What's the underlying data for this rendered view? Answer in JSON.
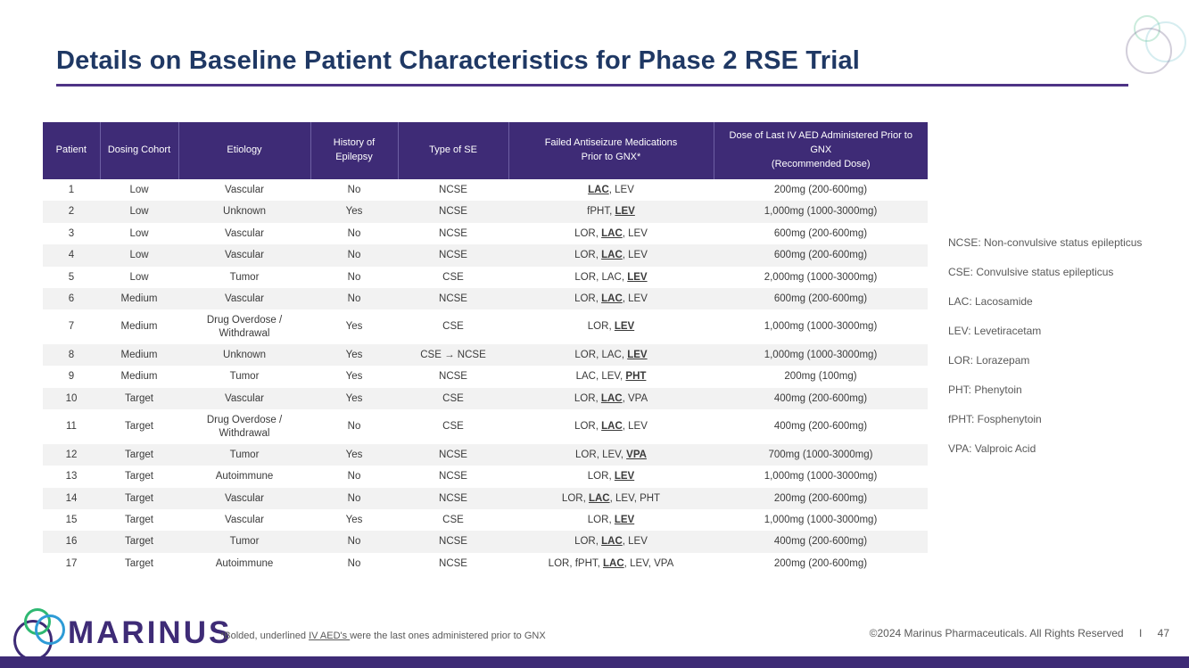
{
  "slide": {
    "title": "Details on Baseline Patient Characteristics for Phase 2 RSE Trial"
  },
  "colors": {
    "title_navy": "#1F3864",
    "rule_purple": "#4E3386",
    "table_header_purple": "#3E2B76",
    "row_stripe_gray": "#F2F2F2",
    "legend_gray": "#595959",
    "logo_green": "#2EB872",
    "logo_blue": "#2E9BD6",
    "bottom_bar_purple": "#3E2B76"
  },
  "table": {
    "headers": [
      {
        "lines": [
          "Patient"
        ]
      },
      {
        "lines": [
          "Dosing Cohort"
        ]
      },
      {
        "lines": [
          "Etiology"
        ]
      },
      {
        "lines": [
          "History of",
          "Epilepsy"
        ]
      },
      {
        "lines": [
          "Type of SE"
        ]
      },
      {
        "lines": [
          "Failed Antiseizure Medications",
          "Prior to GNX*"
        ]
      },
      {
        "lines": [
          "Dose of Last IV AED Administered Prior to",
          "GNX",
          "(Recommended Dose)"
        ]
      }
    ],
    "rows": [
      {
        "patient": "1",
        "cohort": "Low",
        "etiology": "Vascular",
        "history": "No",
        "type_se": "NCSE",
        "meds": [
          {
            "t": "LAC",
            "u": true
          },
          {
            "t": "LEV",
            "u": false
          }
        ],
        "dose": "200mg (200-600mg)"
      },
      {
        "patient": "2",
        "cohort": "Low",
        "etiology": "Unknown",
        "history": "Yes",
        "type_se": "NCSE",
        "meds": [
          {
            "t": "fPHT",
            "u": false
          },
          {
            "t": "LEV",
            "u": true
          }
        ],
        "dose": "1,000mg (1000-3000mg)"
      },
      {
        "patient": "3",
        "cohort": "Low",
        "etiology": "Vascular",
        "history": "No",
        "type_se": "NCSE",
        "meds": [
          {
            "t": "LOR",
            "u": false
          },
          {
            "t": "LAC",
            "u": true
          },
          {
            "t": "LEV",
            "u": false
          }
        ],
        "dose": "600mg (200-600mg)"
      },
      {
        "patient": "4",
        "cohort": "Low",
        "etiology": "Vascular",
        "history": "No",
        "type_se": "NCSE",
        "meds": [
          {
            "t": "LOR",
            "u": false
          },
          {
            "t": "LAC",
            "u": true
          },
          {
            "t": "LEV",
            "u": false
          }
        ],
        "dose": "600mg (200-600mg)"
      },
      {
        "patient": "5",
        "cohort": "Low",
        "etiology": "Tumor",
        "history": "No",
        "type_se": "CSE",
        "meds": [
          {
            "t": "LOR",
            "u": false
          },
          {
            "t": "LAC",
            "u": false
          },
          {
            "t": "LEV",
            "u": true
          }
        ],
        "dose": "2,000mg (1000-3000mg)"
      },
      {
        "patient": "6",
        "cohort": "Medium",
        "etiology": "Vascular",
        "history": "No",
        "type_se": "NCSE",
        "meds": [
          {
            "t": "LOR",
            "u": false
          },
          {
            "t": "LAC",
            "u": true
          },
          {
            "t": "LEV",
            "u": false
          }
        ],
        "dose": "600mg (200-600mg)"
      },
      {
        "patient": "7",
        "cohort": "Medium",
        "etiology": "Drug Overdose / Withdrawal",
        "history": "Yes",
        "type_se": "CSE",
        "meds": [
          {
            "t": "LOR",
            "u": false
          },
          {
            "t": "LEV",
            "u": true
          }
        ],
        "dose": "1,000mg (1000-3000mg)"
      },
      {
        "patient": "8",
        "cohort": "Medium",
        "etiology": "Unknown",
        "history": "Yes",
        "type_se": "CSE → NCSE",
        "meds": [
          {
            "t": "LOR",
            "u": false
          },
          {
            "t": "LAC",
            "u": false
          },
          {
            "t": "LEV",
            "u": true
          }
        ],
        "dose": "1,000mg (1000-3000mg)"
      },
      {
        "patient": "9",
        "cohort": "Medium",
        "etiology": "Tumor",
        "history": "Yes",
        "type_se": "NCSE",
        "meds": [
          {
            "t": "LAC",
            "u": false
          },
          {
            "t": "LEV",
            "u": false
          },
          {
            "t": "PHT",
            "u": true
          }
        ],
        "dose": "200mg (100mg)"
      },
      {
        "patient": "10",
        "cohort": "Target",
        "etiology": "Vascular",
        "history": "Yes",
        "type_se": "CSE",
        "meds": [
          {
            "t": "LOR",
            "u": false
          },
          {
            "t": "LAC",
            "u": true
          },
          {
            "t": "VPA",
            "u": false
          }
        ],
        "dose": "400mg (200-600mg)"
      },
      {
        "patient": "11",
        "cohort": "Target",
        "etiology": "Drug Overdose / Withdrawal",
        "history": "No",
        "type_se": "CSE",
        "meds": [
          {
            "t": "LOR",
            "u": false
          },
          {
            "t": "LAC",
            "u": true
          },
          {
            "t": "LEV",
            "u": false
          }
        ],
        "dose": "400mg (200-600mg)"
      },
      {
        "patient": "12",
        "cohort": "Target",
        "etiology": "Tumor",
        "history": "Yes",
        "type_se": "NCSE",
        "meds": [
          {
            "t": "LOR",
            "u": false
          },
          {
            "t": "LEV",
            "u": false
          },
          {
            "t": "VPA",
            "u": true
          }
        ],
        "dose": "700mg (1000-3000mg)"
      },
      {
        "patient": "13",
        "cohort": "Target",
        "etiology": "Autoimmune",
        "history": "No",
        "type_se": "NCSE",
        "meds": [
          {
            "t": "LOR",
            "u": false
          },
          {
            "t": "LEV",
            "u": true
          }
        ],
        "dose": "1,000mg (1000-3000mg)"
      },
      {
        "patient": "14",
        "cohort": "Target",
        "etiology": "Vascular",
        "history": "No",
        "type_se": "NCSE",
        "meds": [
          {
            "t": "LOR",
            "u": false
          },
          {
            "t": "LAC",
            "u": true
          },
          {
            "t": "LEV",
            "u": false
          },
          {
            "t": "PHT",
            "u": false
          }
        ],
        "dose": "200mg (200-600mg)"
      },
      {
        "patient": "15",
        "cohort": "Target",
        "etiology": "Vascular",
        "history": "Yes",
        "type_se": "CSE",
        "meds": [
          {
            "t": "LOR",
            "u": false
          },
          {
            "t": "LEV",
            "u": true
          }
        ],
        "dose": "1,000mg (1000-3000mg)"
      },
      {
        "patient": "16",
        "cohort": "Target",
        "etiology": "Tumor",
        "history": "No",
        "type_se": "NCSE",
        "meds": [
          {
            "t": "LOR",
            "u": false
          },
          {
            "t": "LAC",
            "u": true
          },
          {
            "t": "LEV",
            "u": false
          }
        ],
        "dose": "400mg (200-600mg)"
      },
      {
        "patient": "17",
        "cohort": "Target",
        "etiology": "Autoimmune",
        "history": "No",
        "type_se": "NCSE",
        "meds": [
          {
            "t": "LOR",
            "u": false
          },
          {
            "t": "fPHT",
            "u": false
          },
          {
            "t": "LAC",
            "u": true
          },
          {
            "t": "LEV",
            "u": false
          },
          {
            "t": "VPA",
            "u": false
          }
        ],
        "dose": "200mg (200-600mg)"
      }
    ]
  },
  "legend": [
    "NCSE: Non-convulsive status epilepticus",
    "CSE: Convulsive status epilepticus",
    "LAC: Lacosamide",
    "LEV: Levetiracetam",
    "LOR: Lorazepam",
    "PHT: Phenytoin",
    "fPHT: Fosphenytoin",
    "VPA: Valproic Acid"
  ],
  "footer": {
    "logo_text": "MARINUS",
    "footnote_prefix": "*Bolded, underlined ",
    "footnote_underlined": "IV AED's ",
    "footnote_suffix": "were the last ones administered prior to GNX",
    "copyright": "©2024 Marinus Pharmaceuticals. All Rights Reserved",
    "separator": "I",
    "page_number": "47"
  }
}
